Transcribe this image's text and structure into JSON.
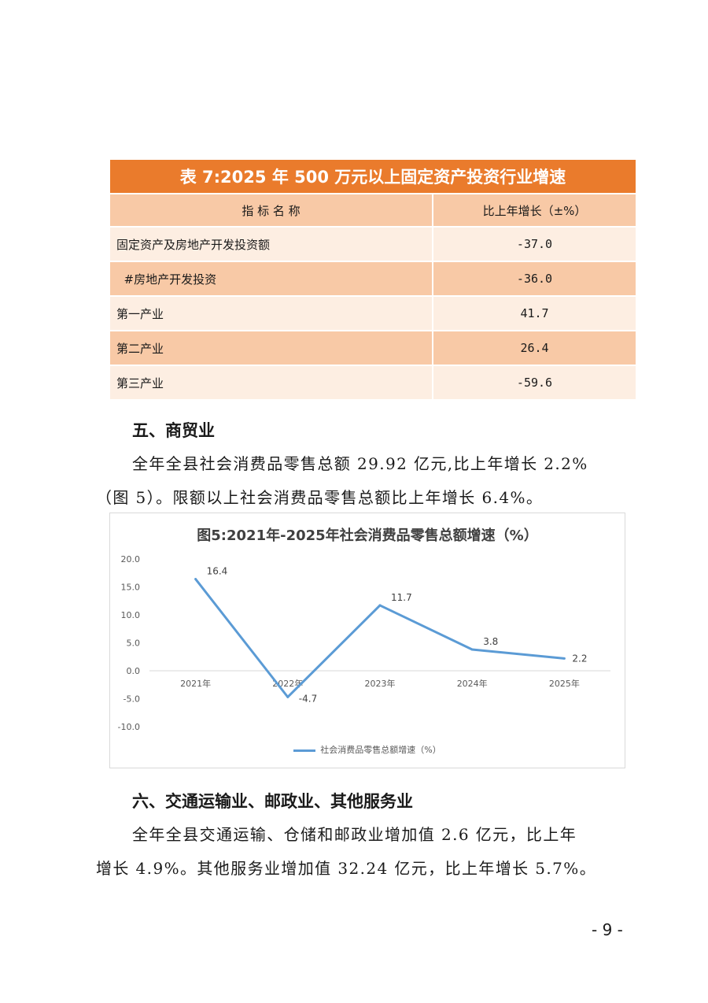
{
  "table7": {
    "title": "表 7:2025 年 500 万元以上固定资产投资行业增速",
    "col_name": "指 标 名 称",
    "col_value": "比上年增长（±%）",
    "rows": [
      {
        "name": "固定资产及房地产开发投资额",
        "value": "-37.0"
      },
      {
        "name": "  #房地产开发投资",
        "value": "-36.0"
      },
      {
        "name": "第一产业",
        "value": "41.7"
      },
      {
        "name": "第二产业",
        "value": "26.4"
      },
      {
        "name": "第三产业",
        "value": "-59.6"
      }
    ]
  },
  "section5": {
    "heading": "五、商贸业",
    "para_line1": "全年全县社会消费品零售总额 29.92 亿元,比上年增长 2.2%",
    "para_line2": "（图 5）。限额以上社会消费品零售总额比上年增长 6.4%。"
  },
  "chart_data": {
    "type": "line",
    "title": "图5:2021年-2025年社会消费品零售总额增速（%）",
    "categories": [
      "2021年",
      "2022年",
      "2023年",
      "2024年",
      "2025年"
    ],
    "series": [
      {
        "name": "社会消费品零售总额增速（%）",
        "values": [
          16.4,
          -4.7,
          11.7,
          3.8,
          2.2
        ],
        "color": "#5b9bd5"
      }
    ],
    "data_labels": [
      "16.4",
      "-4.7",
      "11.7",
      "3.8",
      "2.2"
    ],
    "yticks": [
      "20.0",
      "15.0",
      "10.0",
      "5.0",
      "0.0",
      "-5.0",
      "-10.0"
    ],
    "ylim": [
      -10,
      20
    ],
    "grid": false,
    "legend": "bottom"
  },
  "section6": {
    "heading": "六、交通运输业、邮政业、其他服务业",
    "para_line1": "全年全县交通运输、仓储和邮政业增加值 2.6 亿元，比上年",
    "para_line2": "增长 4.9%。其他服务业增加值 32.24 亿元，比上年增长 5.7%。"
  },
  "page_number": "- 9 -",
  "colors": {
    "table_header": "#ea7b2c",
    "table_band": "#f8c9a6",
    "table_light": "#fdeee2",
    "line": "#5b9bd5"
  }
}
